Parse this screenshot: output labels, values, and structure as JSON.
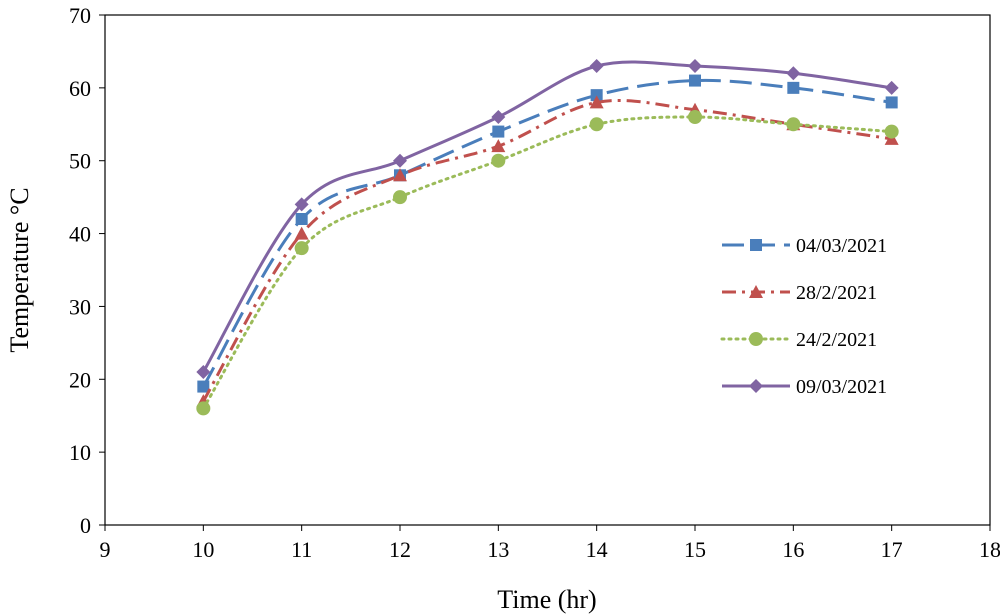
{
  "chart_data": {
    "type": "line",
    "title": "",
    "xlabel": "Time (hr)",
    "ylabel": "Temperature °C",
    "xlim": [
      9,
      18
    ],
    "ylim": [
      0,
      70
    ],
    "xticks": [
      "9",
      "10",
      "11",
      "12",
      "13",
      "14",
      "15",
      "16",
      "17",
      "18"
    ],
    "yticks": [
      "0",
      "10",
      "20",
      "30",
      "40",
      "50",
      "60",
      "70"
    ],
    "grid": false,
    "legend_position": "right",
    "x": [
      10,
      11,
      12,
      13,
      14,
      15,
      16,
      17
    ],
    "series": [
      {
        "name": "04/03/2021",
        "values": [
          19,
          42,
          48,
          54,
          59,
          61,
          60,
          58
        ],
        "color": "#4a7ebb",
        "marker": "square",
        "dash": "long-dash"
      },
      {
        "name": "28/2/2021",
        "values": [
          17,
          40,
          48,
          52,
          58,
          57,
          55,
          53
        ],
        "color": "#c0504d",
        "marker": "triangle",
        "dash": "dash-dot"
      },
      {
        "name": "24/2/2021",
        "values": [
          16,
          38,
          45,
          50,
          55,
          56,
          55,
          54
        ],
        "color": "#9bbb59",
        "marker": "circle",
        "dash": "dotted"
      },
      {
        "name": "09/03/2021",
        "values": [
          21,
          44,
          50,
          56,
          63,
          63,
          62,
          60
        ],
        "color": "#8064a2",
        "marker": "diamond",
        "dash": "solid"
      }
    ]
  }
}
